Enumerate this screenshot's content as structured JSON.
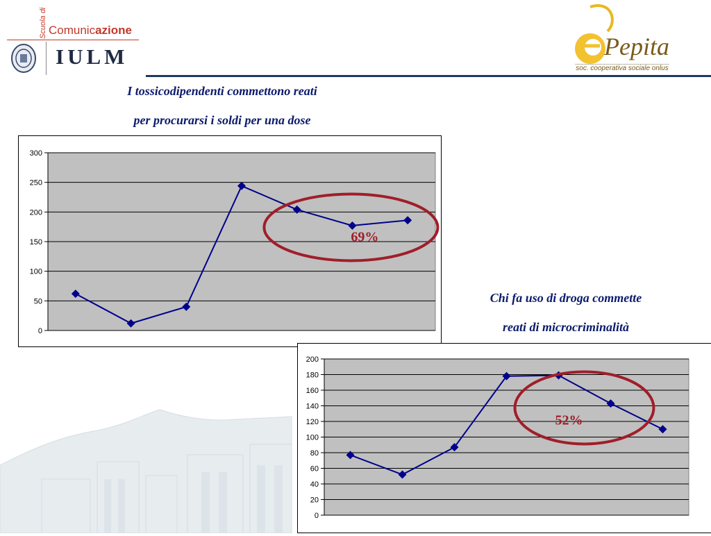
{
  "header": {
    "left_logo": {
      "scuola_label": "Scuola di",
      "comunic_label": "Comunic",
      "azione_label": "azione",
      "iulm_label": "IULM"
    },
    "right_logo": {
      "name": "Pepita",
      "subtitle": "soc. cooperativa sociale onlus"
    }
  },
  "chart1_title": {
    "line1": "I tossicodipendenti commettono reati",
    "line2": "per procurarsi i soldi per una dose"
  },
  "chart2_title": {
    "line1": "Chi fa uso di droga commette",
    "line2": "reati di microcriminalità"
  },
  "colors": {
    "series": "#00008b",
    "ellipse": "#a01e2a",
    "plot_background": "#c0c0c0",
    "title_text": "#0b1a6b"
  },
  "chart_data": [
    {
      "type": "line",
      "x": [
        1,
        2,
        3,
        4,
        5,
        6,
        7
      ],
      "values": [
        62,
        12,
        40,
        244,
        204,
        177,
        186
      ],
      "ylim": [
        0,
        300
      ],
      "yticks": [
        0,
        50,
        100,
        150,
        200,
        250,
        300
      ],
      "grid": true,
      "marker": "diamond",
      "annotation": {
        "text": "69%",
        "highlights_points": [
          5,
          6,
          7
        ]
      }
    },
    {
      "type": "line",
      "x": [
        1,
        2,
        3,
        4,
        5,
        6,
        7
      ],
      "values": [
        77,
        52,
        87,
        178,
        179,
        143,
        110
      ],
      "ylim": [
        0,
        200
      ],
      "yticks": [
        0,
        20,
        40,
        60,
        80,
        100,
        120,
        140,
        160,
        180,
        200
      ],
      "grid": true,
      "marker": "diamond",
      "annotation": {
        "text": "52%",
        "highlights_points": [
          5,
          6,
          7
        ]
      }
    }
  ]
}
